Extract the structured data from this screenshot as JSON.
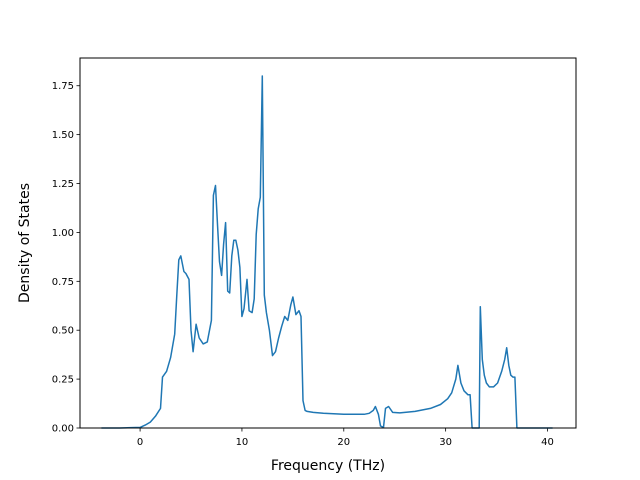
{
  "chart_data": {
    "type": "line",
    "title": "",
    "xlabel": "Frequency (THz)",
    "ylabel": "Density of States",
    "xlim": [
      -5.9,
      42.8
    ],
    "ylim": [
      0,
      1.8918
    ],
    "grid": false,
    "xticks": [
      0,
      10,
      20,
      30,
      40
    ],
    "xtick_labels": [
      "0",
      "10",
      "20",
      "30",
      "40"
    ],
    "yticks": [
      0,
      0.25,
      0.5,
      0.75,
      1.0,
      1.25,
      1.5,
      1.75
    ],
    "ytick_labels": [
      "0.00",
      "0.25",
      "0.50",
      "0.75",
      "1.00",
      "1.25",
      "1.50",
      "1.75"
    ],
    "series": [
      {
        "color": "#1f77b4",
        "x": [
          -3.8,
          -2,
          0,
          0.5,
          1,
          1.5,
          2,
          2.2,
          2.6,
          3,
          3.4,
          3.6,
          3.8,
          4.0,
          4.3,
          4.5,
          4.8,
          5.0,
          5.2,
          5.5,
          5.8,
          6.2,
          6.6,
          7.0,
          7.2,
          7.4,
          7.6,
          7.8,
          8.0,
          8.2,
          8.4,
          8.6,
          8.8,
          9.0,
          9.2,
          9.4,
          9.6,
          9.8,
          10.0,
          10.2,
          10.5,
          10.7,
          11.0,
          11.2,
          11.4,
          11.6,
          11.8,
          12.0,
          12.2,
          12.4,
          12.7,
          13.0,
          13.3,
          13.6,
          13.9,
          14.2,
          14.5,
          14.8,
          15.0,
          15.3,
          15.6,
          15.8,
          16.0,
          16.2,
          16.4,
          17,
          18,
          20,
          22,
          22.5,
          22.9,
          23.1,
          23.4,
          23.6,
          23.9,
          24.1,
          24.4,
          24.8,
          25.5,
          27,
          28.5,
          29.5,
          30.2,
          30.6,
          31.0,
          31.2,
          31.5,
          31.8,
          32.0,
          32.2,
          32.4,
          32.6,
          32.9,
          33.3,
          33.4,
          33.6,
          33.8,
          34.0,
          34.3,
          34.7,
          35.1,
          35.5,
          35.8,
          36.0,
          36.2,
          36.4,
          36.6,
          36.8,
          37.0,
          37.2,
          40.5
        ],
        "y": [
          0,
          0,
          0.003,
          0.015,
          0.03,
          0.06,
          0.1,
          0.26,
          0.29,
          0.36,
          0.48,
          0.68,
          0.86,
          0.88,
          0.8,
          0.79,
          0.76,
          0.5,
          0.39,
          0.53,
          0.46,
          0.43,
          0.44,
          0.55,
          1.19,
          1.24,
          1.04,
          0.85,
          0.78,
          0.94,
          1.05,
          0.7,
          0.69,
          0.88,
          0.96,
          0.96,
          0.91,
          0.82,
          0.57,
          0.61,
          0.76,
          0.6,
          0.59,
          0.66,
          0.99,
          1.12,
          1.18,
          1.8,
          0.68,
          0.59,
          0.5,
          0.37,
          0.39,
          0.46,
          0.52,
          0.57,
          0.55,
          0.63,
          0.67,
          0.58,
          0.6,
          0.57,
          0.14,
          0.09,
          0.085,
          0.08,
          0.075,
          0.07,
          0.07,
          0.075,
          0.09,
          0.11,
          0.07,
          0.01,
          0.003,
          0.1,
          0.11,
          0.08,
          0.077,
          0.085,
          0.1,
          0.12,
          0.15,
          0.18,
          0.25,
          0.32,
          0.23,
          0.19,
          0.18,
          0.17,
          0.17,
          0.0,
          0.0,
          0.0,
          0.62,
          0.35,
          0.27,
          0.23,
          0.21,
          0.21,
          0.23,
          0.29,
          0.35,
          0.41,
          0.32,
          0.27,
          0.26,
          0.26,
          0.0,
          0.0,
          0.0
        ]
      }
    ]
  }
}
